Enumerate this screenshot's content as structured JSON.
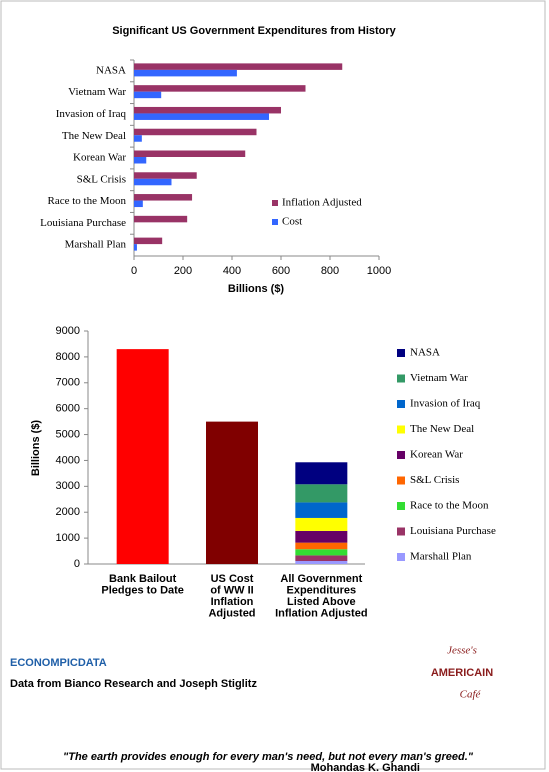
{
  "chart_data": [
    {
      "type": "bar",
      "orientation": "horizontal",
      "title": "Significant US Government Expenditures from History",
      "xlabel": "Billions ($)",
      "categories": [
        "NASA",
        "Vietnam War",
        "Invasion of Iraq",
        "The New Deal",
        "Korean War",
        "S&L Crisis",
        "Race to the Moon",
        "Louisiana Purchase",
        "Marshall Plan"
      ],
      "series": [
        {
          "name": "Inflation Adjusted",
          "color": "#993366",
          "values": [
            850,
            700,
            600,
            500,
            454,
            256,
            237,
            217,
            115
          ]
        },
        {
          "name": "Cost",
          "color": "#3366ff",
          "values": [
            420,
            111,
            551,
            32,
            50,
            153,
            36,
            0,
            12
          ]
        }
      ],
      "xlim": [
        0,
        1000
      ],
      "xticks": [
        0,
        200,
        400,
        600,
        800,
        1000
      ],
      "grid": false,
      "legend": "lower right"
    },
    {
      "type": "stacked_bar",
      "ylabel": "Billions ($)",
      "categories": [
        [
          "Bank Bailout",
          "Pledges to Date"
        ],
        [
          "US Cost",
          "of WW II",
          "Inflation",
          "Adjusted"
        ],
        [
          "All Government",
          "Expenditures",
          "Listed Above",
          "Inflation Adjusted"
        ]
      ],
      "values": [
        8300,
        5500,
        null
      ],
      "colors": [
        "#ff0000",
        "#800000",
        null
      ],
      "series": [
        {
          "name": "NASA",
          "color": "#000080",
          "values": [
            null,
            null,
            850
          ]
        },
        {
          "name": "Vietnam War",
          "color": "#339966",
          "values": [
            null,
            null,
            700
          ]
        },
        {
          "name": "Invasion of Iraq",
          "color": "#0066cc",
          "values": [
            null,
            null,
            600
          ]
        },
        {
          "name": "The New Deal",
          "color": "#ffff00",
          "values": [
            null,
            null,
            500
          ]
        },
        {
          "name": "Korean War",
          "color": "#660066",
          "values": [
            null,
            null,
            454
          ]
        },
        {
          "name": "S&L Crisis",
          "color": "#ff6600",
          "values": [
            null,
            null,
            256
          ]
        },
        {
          "name": "Race to the Moon",
          "color": "#33dd33",
          "values": [
            null,
            null,
            237
          ]
        },
        {
          "name": "Louisiana Purchase",
          "color": "#993366",
          "values": [
            null,
            null,
            217
          ]
        },
        {
          "name": "Marshall Plan",
          "color": "#9999ff",
          "values": [
            null,
            null,
            115
          ]
        }
      ],
      "ylim": [
        0,
        9000
      ],
      "yticks": [
        0,
        1000,
        2000,
        3000,
        4000,
        5000,
        6000,
        7000,
        8000,
        9000
      ],
      "grid": false,
      "legend": "right"
    }
  ],
  "footer": {
    "logo_left": "ECONOMPICDATA",
    "source": "Data from Bianco Research and Joseph Stiglitz",
    "logo_right": [
      "Jesse's",
      "AMERICAIN",
      "Café"
    ],
    "quote": "\"The earth provides enough for every man's need, but not every man's greed.\"",
    "author": "Mohandas K. Ghandi"
  }
}
